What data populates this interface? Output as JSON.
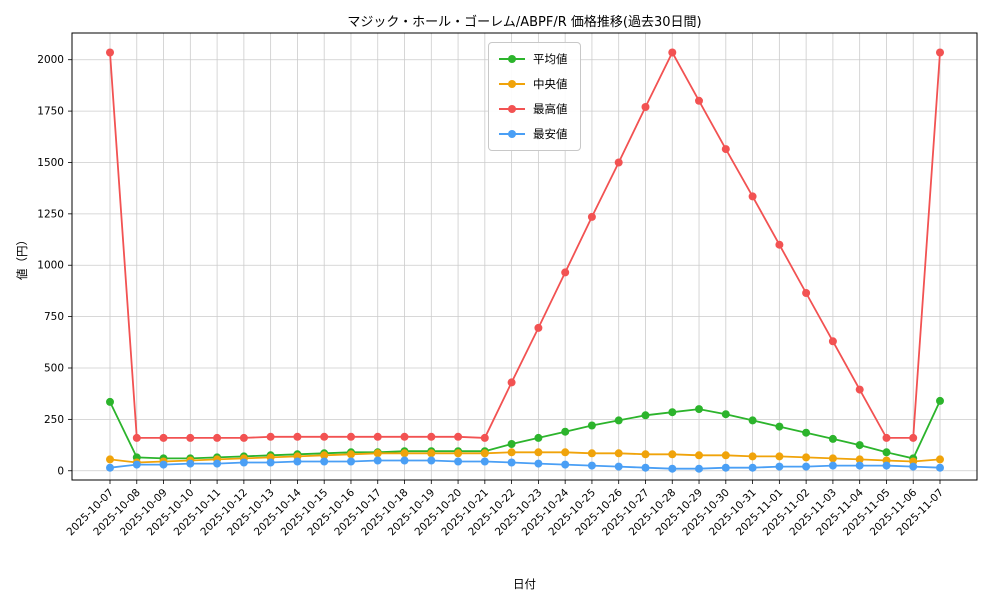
{
  "chart_data": {
    "type": "line",
    "title": "マジック・ホール・ゴーレム/ABPF/R 価格推移(過去30日間)",
    "xlabel": "日付",
    "ylabel": "値（円）",
    "ylim": [
      -45,
      2130
    ],
    "yticks": [
      0,
      250,
      500,
      750,
      1000,
      1250,
      1500,
      1750,
      2000
    ],
    "grid": true,
    "legend_position": "top-center",
    "x": [
      "2025-10-07",
      "2025-10-08",
      "2025-10-09",
      "2025-10-10",
      "2025-10-11",
      "2025-10-12",
      "2025-10-13",
      "2025-10-14",
      "2025-10-15",
      "2025-10-16",
      "2025-10-17",
      "2025-10-18",
      "2025-10-19",
      "2025-10-20",
      "2025-10-21",
      "2025-10-22",
      "2025-10-23",
      "2025-10-24",
      "2025-10-25",
      "2025-10-26",
      "2025-10-27",
      "2025-10-28",
      "2025-10-29",
      "2025-10-30",
      "2025-10-31",
      "2025-11-01",
      "2025-11-02",
      "2025-11-03",
      "2025-11-04",
      "2025-11-05",
      "2025-11-06",
      "2025-11-07"
    ],
    "series": [
      {
        "name": "平均値",
        "color": "#2cb42c",
        "values": [
          335,
          65,
          60,
          60,
          65,
          70,
          75,
          80,
          85,
          90,
          90,
          95,
          95,
          95,
          95,
          130,
          160,
          190,
          220,
          245,
          270,
          285,
          300,
          275,
          245,
          215,
          185,
          155,
          125,
          90,
          60,
          340
        ]
      },
      {
        "name": "中央値",
        "color": "#f0a30a",
        "values": [
          55,
          40,
          45,
          50,
          55,
          60,
          65,
          70,
          75,
          80,
          85,
          85,
          85,
          85,
          85,
          90,
          90,
          90,
          85,
          85,
          80,
          80,
          75,
          75,
          70,
          70,
          65,
          60,
          55,
          50,
          45,
          55
        ]
      },
      {
        "name": "最高値",
        "color": "#f25252",
        "values": [
          2035,
          160,
          160,
          160,
          160,
          160,
          165,
          165,
          165,
          165,
          165,
          165,
          165,
          165,
          160,
          430,
          695,
          965,
          1235,
          1500,
          1770,
          2035,
          1800,
          1565,
          1335,
          1100,
          865,
          630,
          395,
          160,
          160,
          2035
        ]
      },
      {
        "name": "最安値",
        "color": "#4a9ff5",
        "values": [
          15,
          30,
          30,
          35,
          35,
          40,
          40,
          45,
          45,
          45,
          50,
          50,
          50,
          45,
          45,
          40,
          35,
          30,
          25,
          20,
          15,
          10,
          10,
          15,
          15,
          20,
          20,
          25,
          25,
          25,
          20,
          15
        ]
      }
    ]
  }
}
